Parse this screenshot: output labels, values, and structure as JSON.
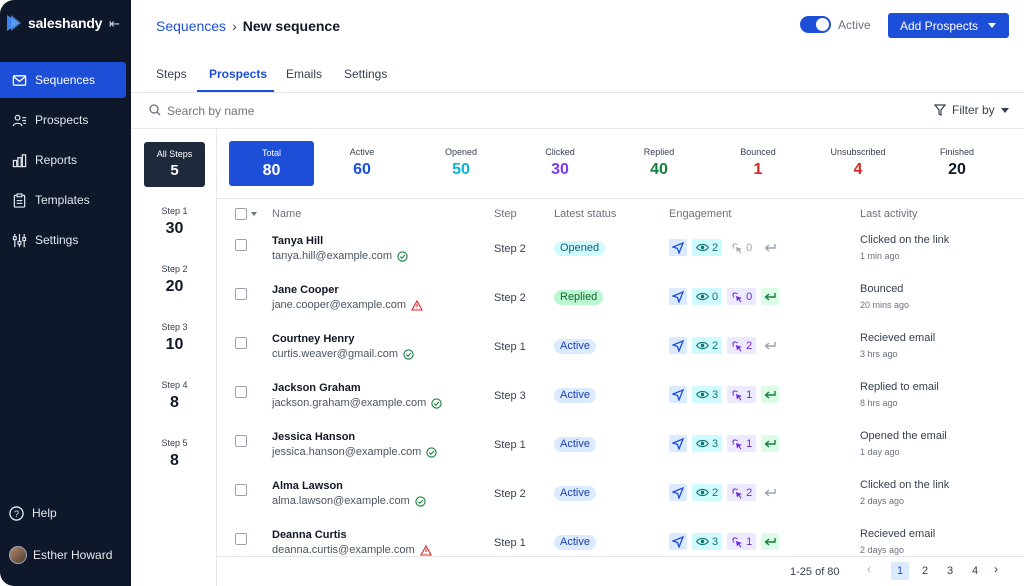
{
  "app": {
    "name": "saleshandy"
  },
  "sidebar": {
    "items": [
      {
        "label": "Sequences",
        "icon": "mail-icon",
        "active": true
      },
      {
        "label": "Prospects",
        "icon": "users-icon"
      },
      {
        "label": "Reports",
        "icon": "bar-chart-icon"
      },
      {
        "label": "Templates",
        "icon": "clipboard-icon"
      },
      {
        "label": "Settings",
        "icon": "sliders-icon"
      }
    ],
    "help": "Help",
    "user": "Esther Howard"
  },
  "header": {
    "breadcrumb_link": "Sequences",
    "breadcrumb_current": "New sequence",
    "toggle_label": "Active",
    "add_button": "Add Prospects"
  },
  "tabs": [
    "Steps",
    "Prospects",
    "Emails",
    "Settings"
  ],
  "search": {
    "placeholder": "Search by name",
    "filter": "Filter by"
  },
  "steps": {
    "all": {
      "label": "All Steps",
      "count": "5"
    },
    "items": [
      {
        "label": "Step 1",
        "count": "30"
      },
      {
        "label": "Step 2",
        "count": "20"
      },
      {
        "label": "Step 3",
        "count": "10"
      },
      {
        "label": "Step 4",
        "count": "8"
      },
      {
        "label": "Step 5",
        "count": "8"
      }
    ]
  },
  "stats": [
    {
      "label": "Total",
      "value": "80",
      "color": "#ffffff"
    },
    {
      "label": "Active",
      "value": "60",
      "color": "#1d4ed8"
    },
    {
      "label": "Opened",
      "value": "50",
      "color": "#06b6d4"
    },
    {
      "label": "Clicked",
      "value": "30",
      "color": "#7c3aed"
    },
    {
      "label": "Replied",
      "value": "40",
      "color": "#15803d"
    },
    {
      "label": "Bounced",
      "value": "1",
      "color": "#dc2626"
    },
    {
      "label": "Unsubscribed",
      "value": "4",
      "color": "#dc2626"
    },
    {
      "label": "Finished",
      "value": "20",
      "color": "#111827"
    }
  ],
  "table": {
    "headers": {
      "name": "Name",
      "step": "Step",
      "status": "Latest status",
      "engagement": "Engagement",
      "activity": "Last activity"
    },
    "rows": [
      {
        "name": "Tanya Hill",
        "email": "tanya.hill@example.com",
        "verify": "ok",
        "step": "Step 2",
        "status": "Opened",
        "views": "2",
        "clicks": "0",
        "clicks_active": false,
        "reply": false,
        "activity": "Clicked on the link",
        "time": "1 min ago"
      },
      {
        "name": "Jane Cooper",
        "email": "jane.cooper@example.com",
        "verify": "warn",
        "step": "Step 2",
        "status": "Replied",
        "views": "0",
        "clicks": "0",
        "clicks_active": true,
        "reply": true,
        "activity": "Bounced",
        "time": "20 mins ago"
      },
      {
        "name": "Courtney Henry",
        "email": "curtis.weaver@gmail.com",
        "verify": "ok",
        "step": "Step 1",
        "status": "Active",
        "views": "2",
        "clicks": "2",
        "clicks_active": true,
        "reply": false,
        "activity": "Recieved email",
        "time": "3 hrs ago"
      },
      {
        "name": "Jackson Graham",
        "email": "jackson.graham@example.com",
        "verify": "ok",
        "step": "Step 3",
        "status": "Active",
        "views": "3",
        "clicks": "1",
        "clicks_active": true,
        "reply": true,
        "activity": "Replied to email",
        "time": "8 hrs ago"
      },
      {
        "name": "Jessica Hanson",
        "email": "jessica.hanson@example.com",
        "verify": "ok",
        "step": "Step 1",
        "status": "Active",
        "views": "3",
        "clicks": "1",
        "clicks_active": true,
        "reply": true,
        "activity": "Opened the email",
        "time": "1 day ago"
      },
      {
        "name": "Alma Lawson",
        "email": "alma.lawson@example.com",
        "verify": "ok",
        "step": "Step 2",
        "status": "Active",
        "views": "2",
        "clicks": "2",
        "clicks_active": true,
        "reply": false,
        "activity": "Clicked on the link",
        "time": "2 days ago"
      },
      {
        "name": "Deanna Curtis",
        "email": "deanna.curtis@example.com",
        "verify": "warn",
        "step": "Step 1",
        "status": "Active",
        "views": "3",
        "clicks": "1",
        "clicks_active": true,
        "reply": true,
        "activity": "Recieved email",
        "time": "2 days ago"
      }
    ]
  },
  "status_colors": {
    "Opened": {
      "bg": "#cffafe",
      "fg": "#155e75"
    },
    "Replied": {
      "bg": "#bbf7d0",
      "fg": "#166534"
    },
    "Active": {
      "bg": "#dbeafe",
      "fg": "#1e40af"
    }
  },
  "pagination": {
    "range": "1-25 of 80",
    "pages": [
      "1",
      "2",
      "3",
      "4"
    ],
    "current": "1"
  }
}
